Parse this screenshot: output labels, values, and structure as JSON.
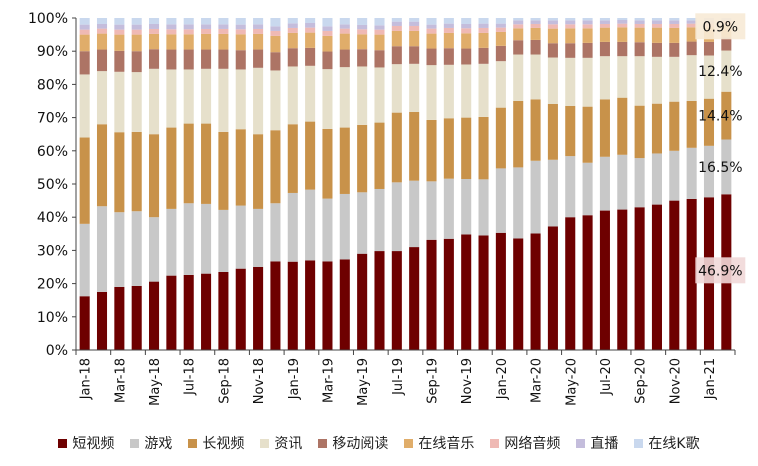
{
  "chart_data": {
    "type": "bar",
    "stacked": true,
    "normalized": true,
    "title": "",
    "xlabel": "",
    "ylabel": "",
    "ylim": [
      0,
      100
    ],
    "y_ticks": [
      "0%",
      "10%",
      "20%",
      "30%",
      "40%",
      "50%",
      "60%",
      "70%",
      "80%",
      "90%",
      "100%"
    ],
    "categories": [
      "Jan-18",
      "Feb-18",
      "Mar-18",
      "Apr-18",
      "May-18",
      "Jun-18",
      "Jul-18",
      "Aug-18",
      "Sep-18",
      "Oct-18",
      "Nov-18",
      "Dec-18",
      "Jan-19",
      "Feb-19",
      "Mar-19",
      "Apr-19",
      "May-19",
      "Jun-19",
      "Jul-19",
      "Aug-19",
      "Sep-19",
      "Oct-19",
      "Nov-19",
      "Dec-19",
      "Jan-20",
      "Feb-20",
      "Mar-20",
      "Apr-20",
      "May-20",
      "Jun-20",
      "Jul-20",
      "Aug-20",
      "Sep-20",
      "Oct-20",
      "Nov-20",
      "Dec-20",
      "Jan-21",
      "Feb-21"
    ],
    "x_tick_labels": [
      "Jan-18",
      "Mar-18",
      "May-18",
      "Jul-18",
      "Sep-18",
      "Nov-18",
      "Jan-19",
      "Mar-19",
      "May-19",
      "Jul-19",
      "Sep-19",
      "Nov-19",
      "Jan-20",
      "Mar-20",
      "May-20",
      "Jul-20",
      "Sep-20",
      "Nov-20",
      "Jan-21"
    ],
    "series": [
      {
        "name": "短视频",
        "color": "#6e0000",
        "values": [
          16.2,
          17.5,
          19.0,
          19.3,
          20.6,
          22.4,
          22.6,
          23.0,
          23.5,
          24.5,
          25.0,
          26.7,
          26.6,
          27.0,
          26.7,
          27.3,
          29.0,
          29.8,
          29.8,
          31.0,
          33.2,
          33.5,
          34.8,
          34.5,
          35.3,
          33.6,
          35.1,
          37.2,
          40.0,
          40.6,
          42.0,
          42.3,
          43.0,
          43.8,
          45.0,
          45.5,
          46.0,
          46.9
        ]
      },
      {
        "name": "游戏",
        "color": "#c8c8c8",
        "values": [
          21.8,
          25.8,
          22.5,
          22.5,
          19.4,
          20.1,
          21.6,
          21.0,
          18.7,
          19.0,
          17.5,
          17.5,
          20.7,
          21.3,
          18.9,
          19.7,
          18.5,
          18.7,
          20.7,
          20.0,
          17.6,
          18.1,
          16.7,
          16.9,
          19.4,
          21.4,
          21.9,
          20.1,
          18.4,
          15.8,
          16.2,
          16.5,
          14.8,
          15.4,
          15.0,
          15.4,
          15.5,
          16.5
        ]
      },
      {
        "name": "长视频",
        "color": "#c8924a",
        "values": [
          26.0,
          24.7,
          24.1,
          23.9,
          25.0,
          24.5,
          24.0,
          24.2,
          23.5,
          23.0,
          22.5,
          22.0,
          20.7,
          20.5,
          21.0,
          20.0,
          20.3,
          20.0,
          21.0,
          20.7,
          18.5,
          18.2,
          18.5,
          18.8,
          18.3,
          20.0,
          18.5,
          16.8,
          15.1,
          16.9,
          17.3,
          17.2,
          15.8,
          15.0,
          14.8,
          14.1,
          14.2,
          14.4
        ]
      },
      {
        "name": "资讯",
        "color": "#e6e0cb",
        "values": [
          19.0,
          16.0,
          18.2,
          18.0,
          19.7,
          17.5,
          16.3,
          16.5,
          19.0,
          18.0,
          20.0,
          18.0,
          17.4,
          16.8,
          18.0,
          18.2,
          17.6,
          16.6,
          14.6,
          14.5,
          16.5,
          16.1,
          16.0,
          16.0,
          14.0,
          14.0,
          13.5,
          14.0,
          14.5,
          14.7,
          13.0,
          12.5,
          14.9,
          14.1,
          13.5,
          13.8,
          13.0,
          12.4
        ]
      },
      {
        "name": "移动阅读",
        "color": "#ad7465",
        "values": [
          7.0,
          6.5,
          6.3,
          6.3,
          5.9,
          6.0,
          6.0,
          5.8,
          5.8,
          5.8,
          5.5,
          5.5,
          5.5,
          5.4,
          5.3,
          5.3,
          5.2,
          5.2,
          5.4,
          5.3,
          5.0,
          5.0,
          4.8,
          4.8,
          4.6,
          4.3,
          4.4,
          4.3,
          4.4,
          4.5,
          4.3,
          4.3,
          4.2,
          4.2,
          4.2,
          4.1,
          4.1,
          4.0
        ]
      },
      {
        "name": "在线音乐",
        "color": "#e0ad6a",
        "values": [
          5.0,
          4.8,
          4.9,
          5.0,
          4.6,
          4.6,
          4.6,
          4.7,
          4.7,
          4.8,
          4.7,
          4.9,
          4.6,
          4.6,
          4.7,
          4.8,
          4.5,
          4.7,
          4.6,
          4.6,
          4.5,
          4.6,
          4.6,
          4.5,
          4.2,
          3.6,
          3.6,
          4.4,
          4.5,
          4.4,
          4.3,
          4.4,
          4.4,
          4.6,
          4.5,
          4.3,
          4.4,
          3.7
        ]
      },
      {
        "name": "网络音频",
        "color": "#efb9b4",
        "values": [
          1.5,
          1.5,
          1.5,
          1.5,
          1.5,
          1.5,
          1.5,
          1.5,
          1.5,
          1.5,
          1.5,
          1.5,
          1.5,
          1.5,
          1.5,
          1.5,
          1.5,
          1.5,
          1.5,
          1.5,
          1.5,
          1.5,
          1.5,
          1.5,
          1.3,
          1.2,
          1.2,
          1.3,
          1.2,
          1.2,
          1.1,
          1.1,
          1.1,
          1.1,
          1.2,
          1.1,
          1.1,
          1.1
        ]
      },
      {
        "name": "直播",
        "color": "#c4bddc",
        "values": [
          1.5,
          1.4,
          1.5,
          1.5,
          1.5,
          1.5,
          1.5,
          1.4,
          1.4,
          1.4,
          1.4,
          1.4,
          1.4,
          1.4,
          1.4,
          1.3,
          1.3,
          1.3,
          1.3,
          1.3,
          1.2,
          1.3,
          1.3,
          1.3,
          1.2,
          1.2,
          1.1,
          1.2,
          1.2,
          1.2,
          1.1,
          1.1,
          1.1,
          1.1,
          1.1,
          1.0,
          1.0,
          0.1
        ]
      },
      {
        "name": "在线K歌",
        "color": "#c9d8ee",
        "values": [
          2.0,
          1.8,
          2.0,
          2.0,
          1.8,
          1.9,
          1.9,
          1.9,
          1.9,
          2.0,
          1.9,
          2.5,
          1.6,
          1.5,
          2.5,
          1.9,
          2.1,
          2.2,
          1.1,
          1.1,
          2.0,
          1.7,
          1.8,
          1.7,
          1.7,
          0.7,
          0.7,
          0.7,
          0.7,
          0.7,
          0.7,
          0.6,
          0.7,
          0.7,
          0.7,
          0.7,
          0.7,
          0.9
        ]
      }
    ],
    "annotations": [
      "46.9%",
      "16.5%",
      "14.4%",
      "12.4%",
      "0.9%"
    ],
    "legend_position": "bottom",
    "grid": false
  }
}
